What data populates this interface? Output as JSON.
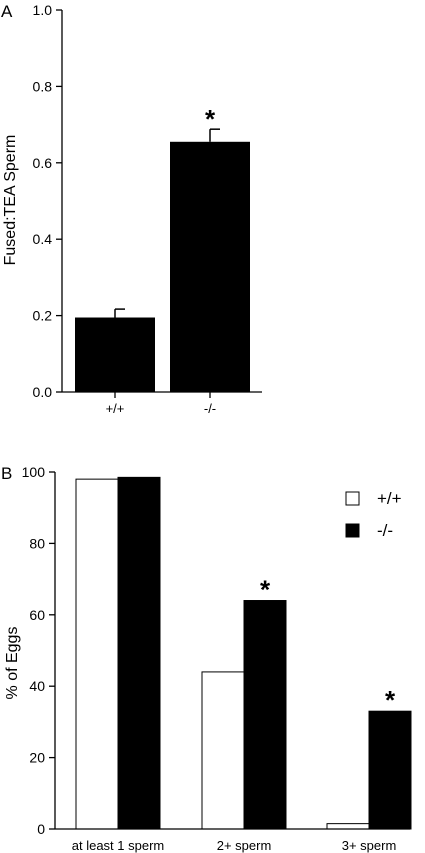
{
  "chart_data": [
    {
      "panel": "A",
      "type": "bar",
      "ylabel": "Fused:TEA Sperm",
      "categories": [
        "+/+",
        "-/-"
      ],
      "values": [
        0.195,
        0.655
      ],
      "errors": [
        0.022,
        0.033
      ],
      "significance": [
        "",
        "*"
      ],
      "ylim": [
        0,
        1.0
      ],
      "yticks": [
        "0.0",
        "0.2",
        "0.4",
        "0.6",
        "0.8",
        "1.0"
      ],
      "ytick_values": [
        0,
        0.2,
        0.4,
        0.6,
        0.8,
        1.0
      ],
      "bar_color": "#000000",
      "grid": false
    },
    {
      "panel": "B",
      "type": "bar",
      "ylabel": "% of Eggs",
      "categories": [
        "at least 1 sperm",
        "2+ sperm",
        "3+ sperm"
      ],
      "series": [
        {
          "name": "+/+",
          "values": [
            98,
            44,
            1.5
          ],
          "color": "#ffffff"
        },
        {
          "name": "-/-",
          "values": [
            98.5,
            64,
            33
          ],
          "color": "#000000"
        }
      ],
      "significance": [
        "",
        "*",
        "*"
      ],
      "ylim": [
        0,
        100
      ],
      "yticks": [
        "0",
        "20",
        "40",
        "60",
        "80",
        "100"
      ],
      "ytick_values": [
        0,
        20,
        40,
        60,
        80,
        100
      ],
      "legend_position": "top-right",
      "grid": false
    }
  ]
}
